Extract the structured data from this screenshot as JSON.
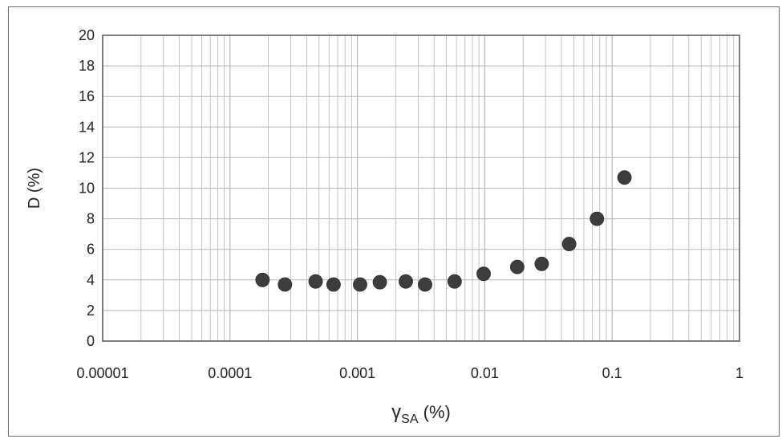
{
  "chart_data": {
    "type": "scatter",
    "title": "",
    "xlabel": "γSA (%)",
    "xlabel_main": "γ",
    "xlabel_subscript": "SA",
    "xlabel_suffix": " (%)",
    "ylabel": "D (%)",
    "x_scale": "log",
    "xlim": [
      1e-05,
      1
    ],
    "ylim": [
      0,
      20
    ],
    "x_tick_labels": [
      "0.00001",
      "0.0001",
      "0.001",
      "0.01",
      "0.1",
      "1"
    ],
    "y_tick_labels": [
      "0",
      "2",
      "4",
      "6",
      "8",
      "10",
      "12",
      "14",
      "16",
      "18",
      "20"
    ],
    "grid": true,
    "legend": "none",
    "marker_color": "#3d3d3d",
    "grid_color": "#b5b5b5",
    "series": [
      {
        "points": [
          {
            "x": 0.00018,
            "y": 4.0
          },
          {
            "x": 0.00027,
            "y": 3.7
          },
          {
            "x": 0.00047,
            "y": 3.9
          },
          {
            "x": 0.00065,
            "y": 3.7
          },
          {
            "x": 0.00105,
            "y": 3.7
          },
          {
            "x": 0.0015,
            "y": 3.85
          },
          {
            "x": 0.0024,
            "y": 3.9
          },
          {
            "x": 0.0034,
            "y": 3.7
          },
          {
            "x": 0.0058,
            "y": 3.9
          },
          {
            "x": 0.0098,
            "y": 4.4
          },
          {
            "x": 0.018,
            "y": 4.85
          },
          {
            "x": 0.028,
            "y": 5.05
          },
          {
            "x": 0.046,
            "y": 6.35
          },
          {
            "x": 0.076,
            "y": 8.0
          },
          {
            "x": 0.125,
            "y": 10.7
          }
        ]
      }
    ]
  }
}
